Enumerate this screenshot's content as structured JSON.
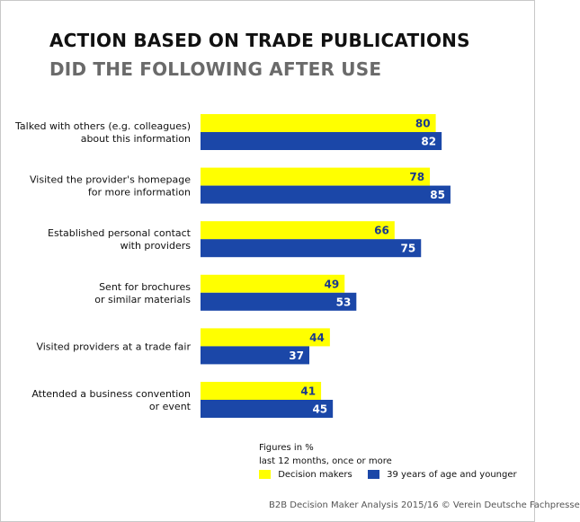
{
  "title": "ACTION BASED ON TRADE PUBLICATIONS",
  "subtitle": "DID THE FOLLOWING AFTER USE",
  "notes": [
    "Figures in %",
    "last 12 months, once or more"
  ],
  "source": "B2B Decision Maker Analysis 2015/16 © Verein Deutsche Fachpresse",
  "colors": {
    "series1": "#ffff00",
    "series2": "#1b47a8",
    "label_series1": "#1b3a8c",
    "label_series2": "#ffffff"
  },
  "chart_data": {
    "type": "bar",
    "orientation": "horizontal",
    "unit": "%",
    "categories": [
      [
        "Talked with others (e.g. colleagues)",
        "about this information"
      ],
      [
        "Visited the provider's homepage",
        "for more information"
      ],
      [
        "Established personal contact",
        "with providers"
      ],
      [
        "Sent for brochures",
        "or similar materials"
      ],
      [
        "Visited providers at a trade fair"
      ],
      [
        "Attended a business convention",
        "or event"
      ]
    ],
    "series": [
      {
        "name": "Decision makers",
        "values": [
          80,
          78,
          66,
          49,
          44,
          41
        ]
      },
      {
        "name": "39 years of age and younger",
        "values": [
          82,
          85,
          75,
          53,
          37,
          45
        ]
      }
    ],
    "xlim": [
      0,
      100
    ],
    "legend_position": "bottom-right",
    "grid": false
  }
}
